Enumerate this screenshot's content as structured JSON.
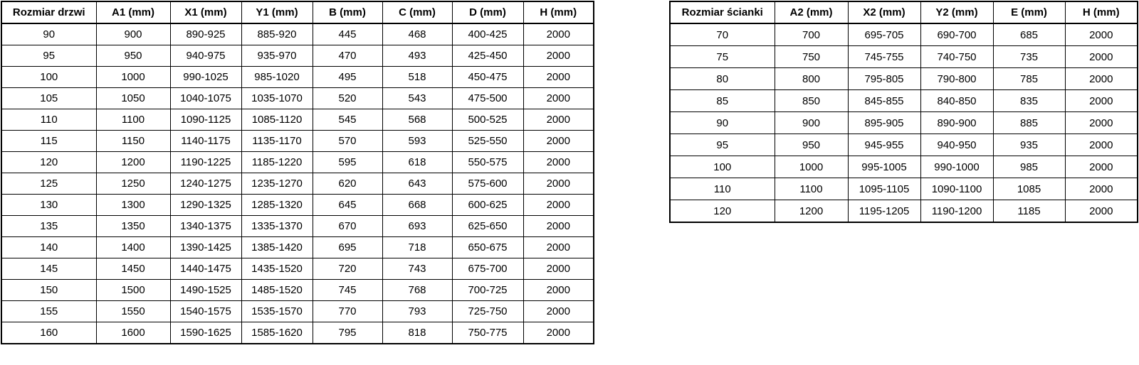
{
  "colors": {
    "background": "#ffffff",
    "border": "#000000",
    "text": "#000000"
  },
  "tables": [
    {
      "name": "door-size-table",
      "headers": [
        "Rozmiar drzwi",
        "A1 (mm)",
        "X1 (mm)",
        "Y1 (mm)",
        "B (mm)",
        "C (mm)",
        "D (mm)",
        "H (mm)"
      ],
      "rows": [
        [
          "90",
          "900",
          "890-925",
          "885-920",
          "445",
          "468",
          "400-425",
          "2000"
        ],
        [
          "95",
          "950",
          "940-975",
          "935-970",
          "470",
          "493",
          "425-450",
          "2000"
        ],
        [
          "100",
          "1000",
          "990-1025",
          "985-1020",
          "495",
          "518",
          "450-475",
          "2000"
        ],
        [
          "105",
          "1050",
          "1040-1075",
          "1035-1070",
          "520",
          "543",
          "475-500",
          "2000"
        ],
        [
          "110",
          "1100",
          "1090-1125",
          "1085-1120",
          "545",
          "568",
          "500-525",
          "2000"
        ],
        [
          "115",
          "1150",
          "1140-1175",
          "1135-1170",
          "570",
          "593",
          "525-550",
          "2000"
        ],
        [
          "120",
          "1200",
          "1190-1225",
          "1185-1220",
          "595",
          "618",
          "550-575",
          "2000"
        ],
        [
          "125",
          "1250",
          "1240-1275",
          "1235-1270",
          "620",
          "643",
          "575-600",
          "2000"
        ],
        [
          "130",
          "1300",
          "1290-1325",
          "1285-1320",
          "645",
          "668",
          "600-625",
          "2000"
        ],
        [
          "135",
          "1350",
          "1340-1375",
          "1335-1370",
          "670",
          "693",
          "625-650",
          "2000"
        ],
        [
          "140",
          "1400",
          "1390-1425",
          "1385-1420",
          "695",
          "718",
          "650-675",
          "2000"
        ],
        [
          "145",
          "1450",
          "1440-1475",
          "1435-1520",
          "720",
          "743",
          "675-700",
          "2000"
        ],
        [
          "150",
          "1500",
          "1490-1525",
          "1485-1520",
          "745",
          "768",
          "700-725",
          "2000"
        ],
        [
          "155",
          "1550",
          "1540-1575",
          "1535-1570",
          "770",
          "793",
          "725-750",
          "2000"
        ],
        [
          "160",
          "1600",
          "1590-1625",
          "1585-1620",
          "795",
          "818",
          "750-775",
          "2000"
        ]
      ]
    },
    {
      "name": "wall-size-table",
      "headers": [
        "Rozmiar ścianki",
        "A2 (mm)",
        "X2 (mm)",
        "Y2 (mm)",
        "E (mm)",
        "H (mm)"
      ],
      "rows": [
        [
          "70",
          "700",
          "695-705",
          "690-700",
          "685",
          "2000"
        ],
        [
          "75",
          "750",
          "745-755",
          "740-750",
          "735",
          "2000"
        ],
        [
          "80",
          "800",
          "795-805",
          "790-800",
          "785",
          "2000"
        ],
        [
          "85",
          "850",
          "845-855",
          "840-850",
          "835",
          "2000"
        ],
        [
          "90",
          "900",
          "895-905",
          "890-900",
          "885",
          "2000"
        ],
        [
          "95",
          "950",
          "945-955",
          "940-950",
          "935",
          "2000"
        ],
        [
          "100",
          "1000",
          "995-1005",
          "990-1000",
          "985",
          "2000"
        ],
        [
          "110",
          "1100",
          "1095-1105",
          "1090-1100",
          "1085",
          "2000"
        ],
        [
          "120",
          "1200",
          "1195-1205",
          "1190-1200",
          "1185",
          "2000"
        ]
      ]
    }
  ]
}
